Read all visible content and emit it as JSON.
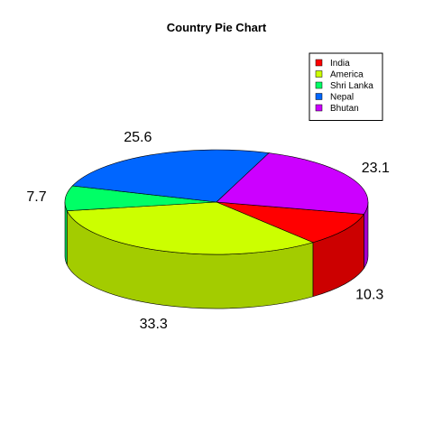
{
  "chart_data": {
    "type": "pie",
    "title": "Country Pie Chart",
    "labels": [
      "India",
      "America",
      "Shri Lanka",
      "Nepal",
      "Bhutan"
    ],
    "values": [
      10.3,
      33.3,
      7.7,
      25.6,
      23.1
    ],
    "value_labels": [
      "10.3",
      "33.3",
      "7.7",
      "25.6",
      "23.1"
    ],
    "colors": [
      "#ff0000",
      "#ccff00",
      "#00ff66",
      "#0066ff",
      "#cc00ff"
    ],
    "legend": {
      "placement": "top-right",
      "entries": [
        {
          "label": "India",
          "color": "#ff0000"
        },
        {
          "label": "America",
          "color": "#ccff00"
        },
        {
          "label": "Shri Lanka",
          "color": "#00ff66"
        },
        {
          "label": "Nepal",
          "color": "#0066ff"
        },
        {
          "label": "Bhutan",
          "color": "#cc00ff"
        }
      ]
    },
    "style": "3d"
  }
}
